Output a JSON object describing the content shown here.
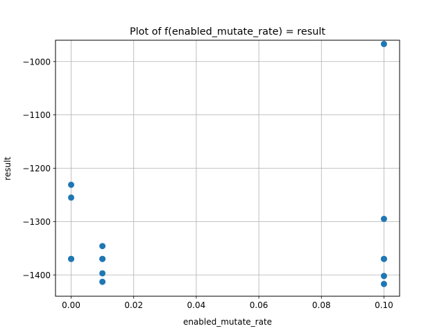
{
  "chart_data": {
    "type": "scatter",
    "title": "Plot of f(enabled_mutate_rate) = result",
    "xlabel": "enabled_mutate_rate",
    "ylabel": "result",
    "xlim": [
      -0.005,
      0.105
    ],
    "ylim": [
      -1440,
      -960
    ],
    "xticks": [
      0.0,
      0.02,
      0.04,
      0.06,
      0.08,
      0.1
    ],
    "xtick_labels": [
      "0.00",
      "0.02",
      "0.04",
      "0.06",
      "0.08",
      "0.10"
    ],
    "yticks": [
      -1400,
      -1300,
      -1200,
      -1100,
      -1000
    ],
    "ytick_labels": [
      "−1400",
      "−1300",
      "−1200",
      "−1100",
      "−1000"
    ],
    "grid": true,
    "marker_color": "#1f77b4",
    "series": [
      {
        "x": [
          0.0,
          0.0,
          0.0,
          0.0,
          0.01,
          0.01,
          0.01,
          0.01,
          0.01,
          0.1,
          0.1,
          0.1,
          0.1,
          0.1,
          0.1
        ],
        "y": [
          -1231,
          -1255,
          -1370,
          -1370,
          -1346,
          -1370,
          -1370,
          -1397,
          -1413,
          -967,
          -1295,
          -1370,
          -1370,
          -1402,
          -1417
        ]
      }
    ]
  }
}
